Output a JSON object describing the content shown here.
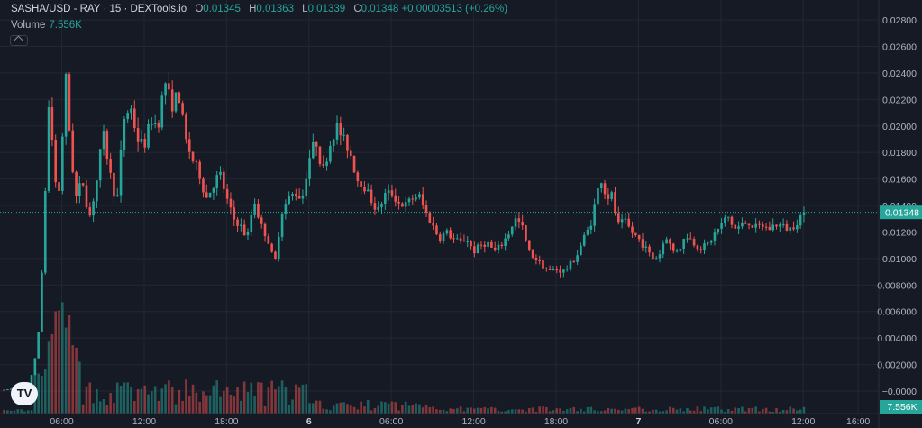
{
  "header": {
    "symbol": "SASHA/USD - RAY · 15 · DEXTools.io",
    "open_label": "O",
    "open": "0.01345",
    "high_label": "H",
    "high": "0.01363",
    "low_label": "L",
    "low": "0.01339",
    "close_label": "C",
    "close": "0.01348",
    "change": "+0.00003513 (+0.26%)"
  },
  "volume_legend": {
    "label": "Volume",
    "value": "7.556K"
  },
  "price_tag": "0.01348",
  "volume_tag": "7.556K",
  "logo_text": "TV",
  "colors": {
    "up": "#26a69a",
    "down": "#ef5350",
    "background": "#161a25",
    "grid": "#232733"
  },
  "chart_data": {
    "type": "candlestick",
    "y_axis_ticks": [
      "0.02800",
      "0.02600",
      "0.02400",
      "0.02200",
      "0.02000",
      "0.01800",
      "0.01600",
      "0.01400",
      "0.01200",
      "0.01000",
      "0.008000",
      "0.006000",
      "0.004000",
      "0.002000",
      "−0.0000"
    ],
    "ylim": [
      -0.0017,
      0.0295
    ],
    "x_axis_ticks": [
      {
        "label": "06:00",
        "t": 6,
        "bold": false
      },
      {
        "label": "12:00",
        "t": 12,
        "bold": false
      },
      {
        "label": "18:00",
        "t": 18,
        "bold": false
      },
      {
        "label": "6",
        "t": 24,
        "bold": true
      },
      {
        "label": "06:00",
        "t": 30,
        "bold": false
      },
      {
        "label": "12:00",
        "t": 36,
        "bold": false
      },
      {
        "label": "18:00",
        "t": 42,
        "bold": false
      },
      {
        "label": "7",
        "t": 48,
        "bold": true
      },
      {
        "label": "06:00",
        "t": 54,
        "bold": false
      },
      {
        "label": "12:00",
        "t": 60,
        "bold": false
      },
      {
        "label": "16:00",
        "t": 64,
        "bold": false
      }
    ],
    "xlim": [
      1.5,
      65.5
    ],
    "last_price": 0.01348,
    "price_path": [
      [
        1.8,
        0.0001
      ],
      [
        2.5,
        0.0002
      ],
      [
        3.2,
        0.0004
      ],
      [
        3.6,
        0.0006
      ],
      [
        3.9,
        0.0015
      ],
      [
        4.1,
        0.0028
      ],
      [
        4.3,
        0.0045
      ],
      [
        4.5,
        0.0075
      ],
      [
        4.7,
        0.0125
      ],
      [
        4.9,
        0.018
      ],
      [
        5.1,
        0.0225
      ],
      [
        5.3,
        0.019
      ],
      [
        5.5,
        0.0165
      ],
      [
        5.7,
        0.0135
      ],
      [
        6.0,
        0.0185
      ],
      [
        6.3,
        0.0235
      ],
      [
        6.6,
        0.019
      ],
      [
        7.0,
        0.0145
      ],
      [
        7.5,
        0.016
      ],
      [
        8.0,
        0.013
      ],
      [
        8.5,
        0.0155
      ],
      [
        9.0,
        0.0195
      ],
      [
        9.5,
        0.0165
      ],
      [
        10.0,
        0.014
      ],
      [
        10.5,
        0.0205
      ],
      [
        11.0,
        0.0215
      ],
      [
        11.5,
        0.019
      ],
      [
        12.0,
        0.0185
      ],
      [
        12.5,
        0.0205
      ],
      [
        13.0,
        0.02
      ],
      [
        13.5,
        0.0235
      ],
      [
        14.0,
        0.0215
      ],
      [
        14.5,
        0.0225
      ],
      [
        15.0,
        0.019
      ],
      [
        15.5,
        0.0175
      ],
      [
        16.0,
        0.0165
      ],
      [
        16.5,
        0.0145
      ],
      [
        17.0,
        0.0155
      ],
      [
        17.5,
        0.0165
      ],
      [
        18.0,
        0.0145
      ],
      [
        18.5,
        0.013
      ],
      [
        19.0,
        0.0125
      ],
      [
        19.5,
        0.0115
      ],
      [
        20.0,
        0.0145
      ],
      [
        20.5,
        0.0125
      ],
      [
        21.0,
        0.0115
      ],
      [
        21.5,
        0.0095
      ],
      [
        22.0,
        0.0135
      ],
      [
        22.5,
        0.0145
      ],
      [
        23.0,
        0.015
      ],
      [
        23.5,
        0.0145
      ],
      [
        24.0,
        0.0175
      ],
      [
        24.5,
        0.019
      ],
      [
        25.0,
        0.0165
      ],
      [
        25.5,
        0.0185
      ],
      [
        26.0,
        0.02
      ],
      [
        26.5,
        0.019
      ],
      [
        27.0,
        0.018
      ],
      [
        27.5,
        0.016
      ],
      [
        28.0,
        0.0155
      ],
      [
        28.5,
        0.0145
      ],
      [
        29.0,
        0.0135
      ],
      [
        29.5,
        0.0148
      ],
      [
        30.0,
        0.015
      ],
      [
        30.5,
        0.0142
      ],
      [
        31.0,
        0.014
      ],
      [
        31.5,
        0.0145
      ],
      [
        32.0,
        0.0148
      ],
      [
        32.5,
        0.0135
      ],
      [
        33.0,
        0.0125
      ],
      [
        33.5,
        0.0115
      ],
      [
        34.0,
        0.012
      ],
      [
        34.5,
        0.0115
      ],
      [
        35.0,
        0.0112
      ],
      [
        35.5,
        0.0115
      ],
      [
        36.0,
        0.0105
      ],
      [
        36.5,
        0.011
      ],
      [
        37.0,
        0.0112
      ],
      [
        37.5,
        0.0105
      ],
      [
        38.0,
        0.011
      ],
      [
        38.5,
        0.0118
      ],
      [
        39.0,
        0.013
      ],
      [
        39.5,
        0.0125
      ],
      [
        40.0,
        0.0105
      ],
      [
        40.5,
        0.01
      ],
      [
        41.0,
        0.0095
      ],
      [
        41.5,
        0.009
      ],
      [
        42.0,
        0.0092
      ],
      [
        42.5,
        0.009
      ],
      [
        43.0,
        0.0095
      ],
      [
        43.5,
        0.0102
      ],
      [
        44.0,
        0.0115
      ],
      [
        44.5,
        0.0125
      ],
      [
        45.0,
        0.015
      ],
      [
        45.3,
        0.016
      ],
      [
        45.7,
        0.0145
      ],
      [
        46.0,
        0.015
      ],
      [
        46.5,
        0.0125
      ],
      [
        47.0,
        0.0128
      ],
      [
        47.5,
        0.012
      ],
      [
        48.0,
        0.0115
      ],
      [
        48.5,
        0.0108
      ],
      [
        49.0,
        0.01
      ],
      [
        49.5,
        0.0102
      ],
      [
        50.0,
        0.0118
      ],
      [
        50.5,
        0.0105
      ],
      [
        51.0,
        0.0108
      ],
      [
        51.5,
        0.0118
      ],
      [
        52.0,
        0.0112
      ],
      [
        52.5,
        0.0108
      ],
      [
        53.0,
        0.011
      ],
      [
        53.5,
        0.0118
      ],
      [
        54.0,
        0.0125
      ],
      [
        54.5,
        0.0132
      ],
      [
        55.0,
        0.0122
      ],
      [
        55.5,
        0.0125
      ],
      [
        56.0,
        0.0128
      ],
      [
        56.5,
        0.0123
      ],
      [
        57.0,
        0.0125
      ],
      [
        57.5,
        0.0122
      ],
      [
        58.0,
        0.0126
      ],
      [
        58.5,
        0.0124
      ],
      [
        59.0,
        0.0122
      ],
      [
        59.5,
        0.0127
      ],
      [
        60.0,
        0.0135
      ],
      [
        60.2,
        0.01348
      ]
    ]
  }
}
